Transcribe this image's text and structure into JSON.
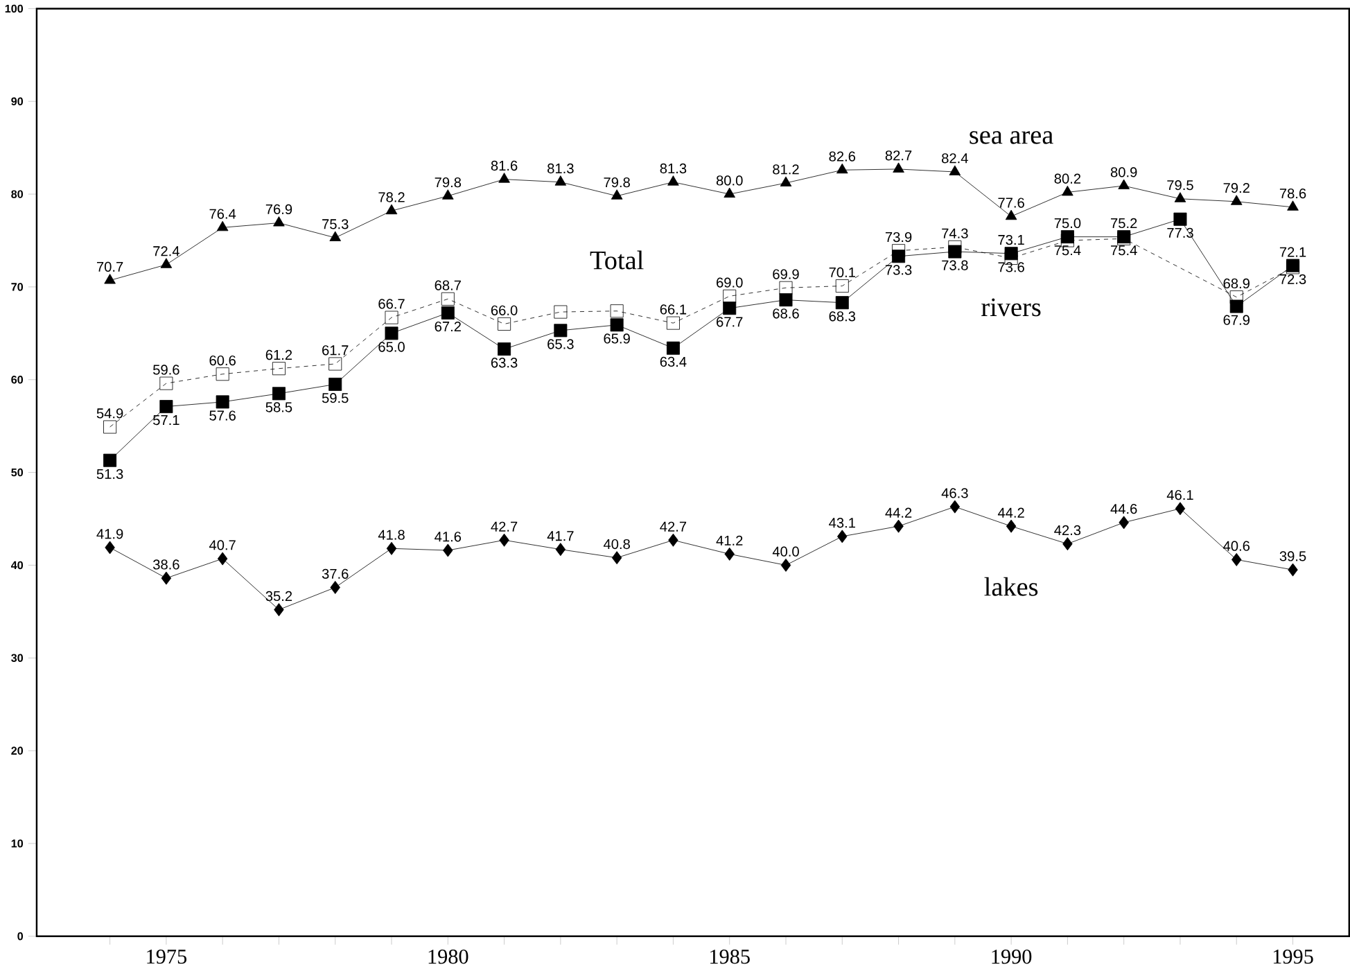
{
  "chart_data": {
    "type": "line",
    "x": [
      1974,
      1975,
      1976,
      1977,
      1978,
      1979,
      1980,
      1981,
      1982,
      1983,
      1984,
      1985,
      1986,
      1987,
      1988,
      1989,
      1990,
      1991,
      1992,
      1993,
      1994,
      1995
    ],
    "series": [
      {
        "name": "sea area",
        "color": "#000000",
        "marker": "triangle",
        "line_style": "solid",
        "values": [
          70.7,
          72.4,
          76.4,
          76.9,
          75.3,
          78.2,
          79.8,
          81.6,
          81.3,
          79.8,
          81.3,
          80.0,
          81.2,
          82.6,
          82.7,
          82.4,
          77.6,
          80.2,
          80.9,
          79.5,
          79.2,
          78.6
        ],
        "value_labels": [
          "70.7",
          "72.4",
          "76.4",
          "76.9",
          "75.3",
          "78.2",
          "79.8",
          "81.6",
          "81.3",
          "79.8",
          "81.3",
          "80.0",
          "81.2",
          "82.6",
          "82.7",
          "82.4",
          "77.6",
          "80.2",
          "80.9",
          "79.5",
          "79.2",
          "78.6"
        ]
      },
      {
        "name": "Total",
        "color": "#000000",
        "marker": "square",
        "line_style": "dashed",
        "values": [
          54.9,
          59.6,
          60.6,
          61.2,
          61.7,
          66.7,
          68.7,
          66.0,
          67.3,
          67.4,
          66.1,
          69.0,
          69.9,
          70.1,
          73.9,
          74.3,
          73.1,
          75.0,
          75.2,
          null,
          68.9,
          72.1
        ],
        "value_labels": [
          "54.9",
          "59.6",
          "60.6",
          "61.2",
          "61.7",
          "66.7",
          "68.7",
          "66.0",
          null,
          null,
          "66.1",
          "69.0",
          "69.9",
          "70.1",
          "73.9",
          "74.3",
          "73.1",
          "75.0",
          "75.2",
          null,
          "68.9",
          "72.1"
        ]
      },
      {
        "name": "rivers",
        "color": "#000000",
        "marker": "square",
        "line_style": "solid",
        "values": [
          51.3,
          57.1,
          57.6,
          58.5,
          59.5,
          65.0,
          67.2,
          63.3,
          65.3,
          65.9,
          63.4,
          67.7,
          68.6,
          68.3,
          73.3,
          73.8,
          73.6,
          75.4,
          75.4,
          77.3,
          67.9,
          72.3
        ],
        "value_labels": [
          "51.3",
          "57.1",
          "57.6",
          "58.5",
          "59.5",
          "65.0",
          "67.2",
          "63.3",
          "65.3",
          "65.9",
          "63.4",
          "67.7",
          "68.6",
          "68.3",
          "73.3",
          "73.8",
          "73.6",
          "75.4",
          "75.4",
          "77.3",
          "67.9",
          "72.3"
        ]
      },
      {
        "name": "lakes",
        "color": "#000000",
        "marker": "diamond",
        "line_style": "solid",
        "values": [
          41.9,
          38.6,
          40.7,
          35.2,
          37.6,
          41.8,
          41.6,
          42.7,
          41.7,
          40.8,
          42.7,
          41.2,
          40.0,
          43.1,
          44.2,
          46.3,
          44.2,
          42.3,
          44.6,
          46.1,
          40.6,
          39.5
        ],
        "value_labels": [
          "41.9",
          "38.6",
          "40.7",
          "35.2",
          "37.6",
          "41.8",
          "41.6",
          "42.7",
          "41.7",
          "40.8",
          "42.7",
          "41.2",
          "40.0",
          "43.1",
          "44.2",
          "46.3",
          "44.2",
          "42.3",
          "44.6",
          "46.1",
          "40.6",
          "39.5"
        ]
      }
    ],
    "xlim": [
      1972.7,
      1996
    ],
    "xticks": [
      {
        "value": 1974,
        "label": null
      },
      1975,
      {
        "value": 1976,
        "label": null
      },
      {
        "value": 1977,
        "label": null
      },
      {
        "value": 1978,
        "label": null
      },
      {
        "value": 1979,
        "label": null
      },
      1980,
      {
        "value": 1981,
        "label": null
      },
      {
        "value": 1982,
        "label": null
      },
      {
        "value": 1983,
        "label": null
      },
      {
        "value": 1984,
        "label": null
      },
      1985,
      {
        "value": 1986,
        "label": null
      },
      {
        "value": 1987,
        "label": null
      },
      {
        "value": 1988,
        "label": null
      },
      {
        "value": 1989,
        "label": null
      },
      1990,
      {
        "value": 1991,
        "label": null
      },
      {
        "value": 1992,
        "label": null
      },
      {
        "value": 1993,
        "label": null
      },
      {
        "value": 1994,
        "label": null
      },
      1995
    ],
    "ylim": [
      0,
      100
    ],
    "yticks": [
      0,
      10,
      20,
      30,
      40,
      50,
      60,
      70,
      80,
      90,
      100
    ],
    "grid": false
  }
}
